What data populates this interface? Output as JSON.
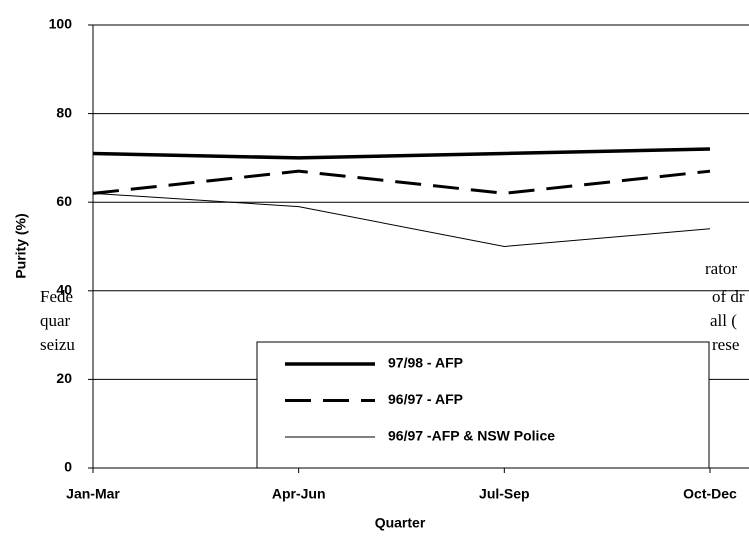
{
  "chart_data": {
    "type": "line",
    "x_label": "Quarter",
    "y_label": "Purity (%)",
    "categories": [
      "Jan-Mar",
      "Apr-Jun",
      "Jul-Sep",
      "Oct-Dec"
    ],
    "series": [
      {
        "name": "97/98 - AFP",
        "color": "#000000",
        "style": "thick",
        "values": [
          71,
          70,
          71,
          72
        ]
      },
      {
        "name": "96/97 - AFP",
        "color": "#000000",
        "style": "dashed",
        "values": [
          62,
          67,
          62,
          67
        ]
      },
      {
        "name": "96/97 -AFP & NSW Police",
        "color": "#000000",
        "style": "thin",
        "values": [
          62,
          59,
          50,
          54
        ]
      }
    ],
    "ylim": [
      0,
      100
    ],
    "yticks": [
      0,
      20,
      40,
      60,
      80,
      100
    ],
    "grid": true,
    "background_text": [
      "rator",
      "Fede",
      "of dr",
      "quar",
      "all (",
      "seizu",
      "rese"
    ]
  }
}
